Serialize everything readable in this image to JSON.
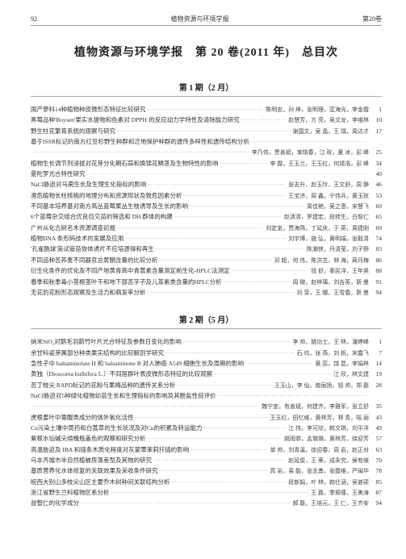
{
  "header": {
    "page_number": "92",
    "journal_name": "植物资源与环境学报",
    "volume_label": "第20卷"
  },
  "main_title": "植物资源与环境学报　第 20 卷(2011 年)　总目次",
  "issues": [
    {
      "heading": "第 1 期（2 月）",
      "entries": [
        {
          "title": "国产蓼科14种植物种皮微形态特征比较研究",
          "authors": "陈明忠，孙 坤，张明理，匡海光，李金霞",
          "page": "1"
        },
        {
          "title": "黑莓品种'Boysen'果实水提物和色素对 DPPH·的反应动力学特性及清除能力研究",
          "authors": "赵慧芳，方 亮，吴文龙，李维林",
          "page": "10"
        },
        {
          "title": "野生柱花繁育系统的观察与研究",
          "authors": "谢国文，吴 晶，王 瑞，周达才",
          "page": "17"
        },
        {
          "title": "基于ISSR标记的南方红豆杉野生种群和迁地保护种群的遗传多样性和遗传结构分析",
          "authors": "",
          "page": ""
        },
        {
          "title": "",
          "authors": "李乃伟，贾善斌，束晓春，江  玫，夏  冰，彭  峰",
          "page": "25"
        },
        {
          "title": "植物生长调节剂浸拔对花芽分化期石蒜和换锦花鳞茎及生物特性的影响",
          "authors": "李  霞，王玉兰，王玉红，何靖浩，彭  峰",
          "page": "34"
        },
        {
          "title": "曼陀罗光合特性研究",
          "authors": "",
          "page": "40"
        },
        {
          "title": "NaCl胁迫对马蔺生长及生理生化指标的影响",
          "authors": "张志升，赵玉玲，王文舒，周  静",
          "page": "46"
        },
        {
          "title": "濒危植物长柱核桃的地理分布和资源现状及致危因素分析",
          "authors": "王宝济，周  鑫，宁伟兵，黄玉玫",
          "page": "53"
        },
        {
          "title": "不同基本培养基对南方高丛蓝莓果丛生枝诱导及生长的影响",
          "authors": "周佳艳，吴之恩，宋慧飞",
          "page": "60"
        },
        {
          "title": "6个蓝莓杂交组合优良自交苗的筛选和 DH 群体的构建",
          "authors": "赵清清，罗建宏，段转生，白智仁",
          "page": "65"
        },
        {
          "title": "广州从化古树名木资源调查初报",
          "authors": "刘定金，贾海燕，丁延庆，于 英，周建刚",
          "page": "69"
        },
        {
          "title": "植物DNA 条形码技术的发展及应用",
          "authors": "刘宇博，施 弘，黄明端，张毅清",
          "page": "74"
        },
        {
          "title": "'孔雀酰球'笼试管苗恢体诱片不应培源得和再生",
          "authors": "陈潮侠，丹清莹，刘子野",
          "page": "83"
        },
        {
          "title": "不同品种苦荞麦不同器官总黄酮含量的比较分析",
          "authors": "邓  超，何  伟，陈洪芝，林  海，蒋月梅",
          "page": "86"
        },
        {
          "title": "衍生化条件的优化及不同产地黄青高中青蒿素含量测定前生化-HPLC法测定",
          "authors": "钱  舒，秦民洋，王年昊",
          "page": "88"
        },
        {
          "title": "春季和秋季毒小茎根茎叶干和地下部苦芋子及儿茶素类含量的HPLC分析",
          "authors": "周  微，赵梓瑀，刘吉英，靳 曼",
          "page": "91"
        },
        {
          "title": "无花豹花粉形态观察及生活力和萌发率分析",
          "authors": "刘  芽，王  娜，王雪春，靳 曼",
          "page": "94"
        }
      ]
    },
    {
      "heading": "第 2 期（5 月）",
      "entries": [
        {
          "title": "纳米SiO₂对鹅毛羽箭竹叶片光合特征及参数日变化的影响",
          "authors": "李  帅，姚功士，王  林，潘婷峰",
          "page": "1"
        },
        {
          "title": "余甘科姿芽属部分种类果实结构的比较解剖学研究",
          "authors": "石  均，张  燕，刘  帆，宋露飞",
          "page": "7"
        },
        {
          "title": "急性子中 balsaminolate H 和 balsaminone B 对人肺癌 A549 细胞生长及周期的影响",
          "authors": "黄  蕊，饶  昆，李娟林",
          "page": "14"
        },
        {
          "title": "黄独（Dioscorea bulbifera L.）不同居群叶表皮微形态特征的比较观察",
          "authors": "江  欣，林文建",
          "page": "19"
        },
        {
          "title": "苦丁枝尖 RAPD标记的花粉与果梅品种的遗传关系分析",
          "authors": "王玉山，李  仙，南丽扬，钮  帅，郑  磊",
          "page": "28"
        },
        {
          "title": "NaCl胁迫对5种绿化植物幼苗生长和生理指标的影响及其酚盐性综评价",
          "authors": "",
          "page": ""
        },
        {
          "title": "",
          "authors": "魏宁宣，有善斌，何建齐，李雅军，张立舒",
          "page": "35"
        },
        {
          "title": "虎根姜叶中薏醌类成分的体外氧化活性",
          "authors": "王玉红，田忆维，黄林芳，林  青，陆  丽",
          "page": "43"
        },
        {
          "title": "Cu污染土壤中黄药和白蒿草的生长状况及对Cu的积累及转运能力",
          "authors": "江  伟，李可欣，韩文琪，刘平洋",
          "page": "49"
        },
        {
          "title": "紫根水仙碱尖绵槐瓶盖色的观察和研究分析",
          "authors": "姚雨霏，孟璐璐，黄林芳，徐迎芳",
          "page": "57"
        },
        {
          "title": "高温胁迫及 IBA 和插条木质化程度对灰蒙覃茉莉扦插的影响",
          "authors": "单  帅，刘青溪，徐迎春，周  岩，赵正对",
          "page": "63"
        },
        {
          "title": "乌本齐城市半自然植被房落差型及其物的研究",
          "authors": "赵延俊，王  蒂，成永究，侯有维",
          "page": "70"
        },
        {
          "title": "基质营养化水体修复的关联效果及采收条件研究",
          "authors": "高  岩，易  能，张志勇，张霞维，严闽华",
          "page": "78"
        },
        {
          "title": "皖西大别山多枝尖山区主要乔木树种间关联结构分析",
          "authors": "段新娟，叶  林，韩仕涵，吴甚硕",
          "page": "85"
        },
        {
          "title": "浙江省野生兰科植物区系分析",
          "authors": "王  磊，季塬僮，王美涛",
          "page": "87"
        },
        {
          "title": "益智仁的化学成分",
          "authors": "郝  磊，王培元，王  仁，王齐安",
          "page": "94"
        }
      ]
    }
  ],
  "style": {
    "dot_char": "·"
  }
}
